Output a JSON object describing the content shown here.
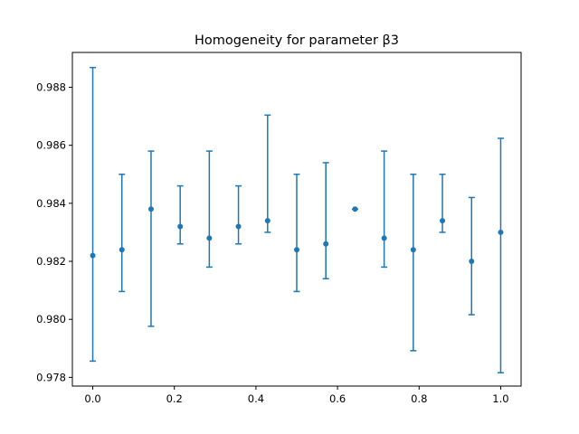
{
  "chart_data": {
    "type": "scatter",
    "title": "Homogeneity for parameter β3",
    "xlabel": "",
    "ylabel": "",
    "xlim": [
      -0.05,
      1.05
    ],
    "ylim": [
      0.9777,
      0.9892
    ],
    "x_ticks": [
      0.0,
      0.2,
      0.4,
      0.6,
      0.8,
      1.0
    ],
    "x_tick_labels": [
      "0.0",
      "0.2",
      "0.4",
      "0.6",
      "0.8",
      "1.0"
    ],
    "y_ticks": [
      0.978,
      0.98,
      0.982,
      0.984,
      0.986,
      0.988
    ],
    "y_tick_labels": [
      "0.978",
      "0.980",
      "0.982",
      "0.984",
      "0.986",
      "0.988"
    ],
    "grid": false,
    "color": "#1f77b4",
    "points": [
      {
        "x": 0.0,
        "y": 0.9822,
        "yerr_low": 0.97856,
        "yerr_high": 0.98868
      },
      {
        "x": 0.0714,
        "y": 0.9824,
        "yerr_low": 0.98096,
        "yerr_high": 0.985
      },
      {
        "x": 0.1429,
        "y": 0.9838,
        "yerr_low": 0.97976,
        "yerr_high": 0.9858
      },
      {
        "x": 0.2143,
        "y": 0.9832,
        "yerr_low": 0.9826,
        "yerr_high": 0.9846
      },
      {
        "x": 0.2857,
        "y": 0.9828,
        "yerr_low": 0.9818,
        "yerr_high": 0.9858
      },
      {
        "x": 0.3571,
        "y": 0.9832,
        "yerr_low": 0.9826,
        "yerr_high": 0.9846
      },
      {
        "x": 0.4286,
        "y": 0.9834,
        "yerr_low": 0.983,
        "yerr_high": 0.98704
      },
      {
        "x": 0.5,
        "y": 0.9824,
        "yerr_low": 0.98096,
        "yerr_high": 0.985
      },
      {
        "x": 0.5714,
        "y": 0.9826,
        "yerr_low": 0.9814,
        "yerr_high": 0.9854
      },
      {
        "x": 0.6429,
        "y": 0.9838,
        "yerr_low": 0.9838,
        "yerr_high": 0.9838
      },
      {
        "x": 0.7143,
        "y": 0.9828,
        "yerr_low": 0.9818,
        "yerr_high": 0.9858
      },
      {
        "x": 0.7857,
        "y": 0.9824,
        "yerr_low": 0.97892,
        "yerr_high": 0.985
      },
      {
        "x": 0.8571,
        "y": 0.9834,
        "yerr_low": 0.983,
        "yerr_high": 0.985
      },
      {
        "x": 0.9286,
        "y": 0.982,
        "yerr_low": 0.98016,
        "yerr_high": 0.9842
      },
      {
        "x": 1.0,
        "y": 0.983,
        "yerr_low": 0.97816,
        "yerr_high": 0.98624
      }
    ]
  }
}
